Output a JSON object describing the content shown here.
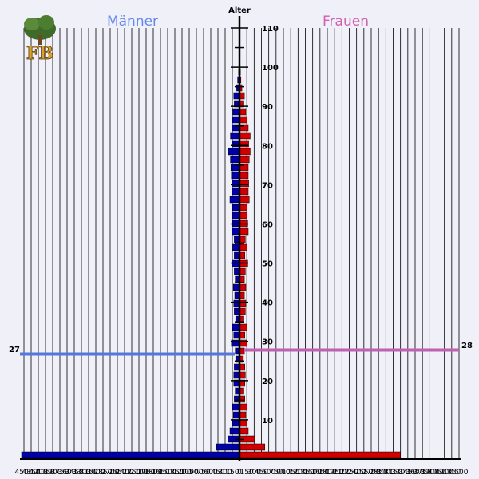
{
  "chart_data": {
    "type": "bar",
    "orientation": "horizontal-population-pyramid",
    "title_left": "Männer",
    "title_right": "Frauen",
    "axis_title": "Alter",
    "ylabel_ticks": [
      10,
      20,
      30,
      40,
      50,
      60,
      70,
      80,
      90,
      100,
      110
    ],
    "age_range": [
      0,
      110
    ],
    "x_max": 4500,
    "x_step": 150,
    "x_tick_label_step": 150,
    "colors": {
      "male": "#0000a8",
      "female": "#d00000",
      "male_mean": "#5577dd",
      "female_mean": "#c060b0",
      "grid": "#000000",
      "title_male": "#6688ee",
      "title_female": "#d060b0"
    },
    "mean_age_male": "27",
    "mean_age_female": "28",
    "mean_age_male_value": 27,
    "mean_age_female_value": 28,
    "male": [
      4550,
      480,
      240,
      200,
      150,
      130,
      150,
      110,
      90,
      120,
      120,
      110,
      80,
      90,
      170,
      120,
      150,
      80,
      110,
      120,
      100,
      130,
      90,
      110,
      160,
      110,
      140,
      110,
      160,
      150,
      150,
      150,
      200,
      160,
      160,
      170,
      180,
      190,
      230,
      150,
      190,
      160,
      150,
      140,
      110,
      120,
      60,
      40,
      20,
      10,
      10
    ],
    "female": [
      3300,
      520,
      310,
      180,
      150,
      130,
      150,
      110,
      90,
      110,
      120,
      110,
      80,
      100,
      150,
      110,
      150,
      90,
      120,
      130,
      100,
      130,
      100,
      120,
      170,
      110,
      150,
      120,
      180,
      170,
      160,
      160,
      200,
      180,
      190,
      180,
      180,
      200,
      220,
      190,
      220,
      180,
      160,
      130,
      90,
      100,
      50,
      30,
      20,
      10,
      10
    ]
  }
}
